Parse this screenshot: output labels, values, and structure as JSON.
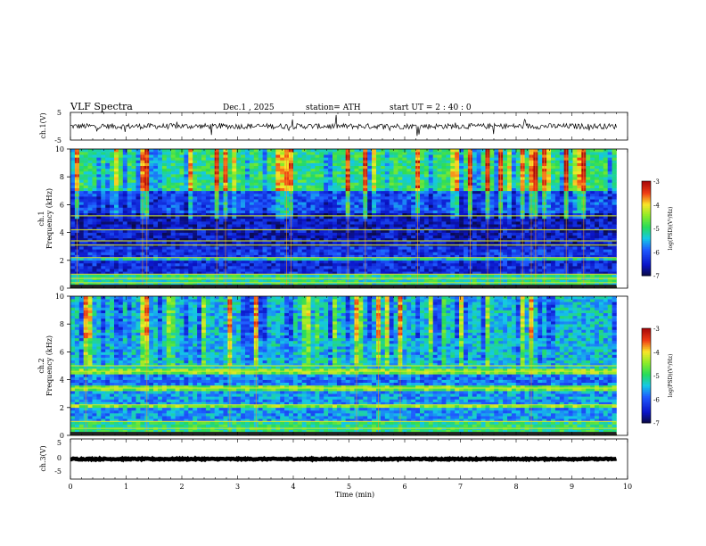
{
  "header": {
    "title": "VLF  Spectra",
    "date": "Dec.1 , 2025",
    "station": "station= ATH",
    "start_ut": "start  UT  =   2 : 40 : 0"
  },
  "colors": {
    "background": "#ffffff",
    "trace": "#000000",
    "spectrogram_low": "#0a1fc8",
    "spectrogram_mid": "#22dd33",
    "spectrogram_high": "#cc1111"
  },
  "chart_data": [
    {
      "type": "line",
      "name": "ch1-waveform",
      "ylabel": "ch.1(V)",
      "ylim": [
        -5,
        5
      ],
      "yticks": [
        5,
        -5
      ],
      "xlim": [
        0,
        10
      ],
      "x_range_data": [
        0,
        9.8
      ],
      "baseline": 0,
      "typical_amplitude": 1.0,
      "note": "noisy waveform around 0 V with sporadic spikes"
    },
    {
      "type": "heatmap",
      "name": "ch1-spectrogram",
      "ylabel": "ch.1\nFrequency  (kHz)",
      "ylim": [
        0,
        10
      ],
      "yticks": [
        0,
        2,
        4,
        6,
        8,
        10
      ],
      "xlim": [
        0,
        10
      ],
      "x_range_data": [
        0,
        9.8
      ],
      "colorbar": {
        "label": "log(PSD)(V²/Hz)",
        "range": [
          -7,
          -3
        ],
        "ticks": [
          -3,
          -4,
          -5,
          -6,
          -7
        ]
      },
      "frequency_bands": [
        {
          "from": 0,
          "to": 0.3,
          "level": -4.2
        },
        {
          "from": 0.3,
          "to": 0.9,
          "level": -5.1
        },
        {
          "from": 0.9,
          "to": 2.0,
          "level": -6.3
        },
        {
          "from": 2.0,
          "to": 2.3,
          "level": -5.3
        },
        {
          "from": 2.3,
          "to": 3.0,
          "level": -6.2
        },
        {
          "from": 3.0,
          "to": 5.4,
          "level": -6.5
        },
        {
          "from": 5.4,
          "to": 7.0,
          "level": -6.0
        },
        {
          "from": 7.0,
          "to": 10.0,
          "level": -5.0
        }
      ],
      "lines_khz": [
        0.4,
        0.7,
        1.0,
        2.2,
        3.1,
        3.4,
        4.2,
        5.2
      ]
    },
    {
      "type": "heatmap",
      "name": "ch2-spectrogram",
      "ylabel": "ch.2\nFrequency  (kHz)",
      "ylim": [
        0,
        10
      ],
      "yticks": [
        0,
        2,
        4,
        6,
        8,
        10
      ],
      "xlim": [
        0,
        10
      ],
      "x_range_data": [
        0,
        9.8
      ],
      "colorbar": {
        "label": "log(PSD)(V²/Hz)",
        "range": [
          -7,
          -3
        ],
        "ticks": [
          -3,
          -4,
          -5,
          -6,
          -7
        ]
      },
      "frequency_bands": [
        {
          "from": 0,
          "to": 0.3,
          "level": -4.0
        },
        {
          "from": 0.3,
          "to": 1.0,
          "level": -5.0
        },
        {
          "from": 1.0,
          "to": 2.0,
          "level": -5.6
        },
        {
          "from": 2.0,
          "to": 2.3,
          "level": -4.5
        },
        {
          "from": 2.3,
          "to": 3.3,
          "level": -5.6
        },
        {
          "from": 3.3,
          "to": 3.6,
          "level": -4.6
        },
        {
          "from": 3.6,
          "to": 4.5,
          "level": -5.8
        },
        {
          "from": 4.5,
          "to": 4.7,
          "level": -4.5
        },
        {
          "from": 4.7,
          "to": 5.5,
          "level": -5.3
        },
        {
          "from": 5.5,
          "to": 10.0,
          "level": -5.4
        }
      ],
      "lines_khz": [
        0.5,
        1.0,
        2.2,
        3.4,
        4.6,
        5.0
      ]
    },
    {
      "type": "line",
      "name": "ch3-waveform",
      "ylabel": "ch.3(V)",
      "ylim": [
        -5,
        5
      ],
      "yticks": [
        5,
        0,
        -5
      ],
      "xlim": [
        0,
        10
      ],
      "x_range_data": [
        0,
        9.8
      ],
      "baseline": 0,
      "typical_amplitude": 0.15,
      "note": "flat thick trace near 0 V"
    }
  ],
  "xaxis": {
    "label": "Time  (min)",
    "ticks": [
      "0",
      "1",
      "2",
      "3",
      "4",
      "5",
      "6",
      "7",
      "8",
      "9",
      "10"
    ]
  }
}
